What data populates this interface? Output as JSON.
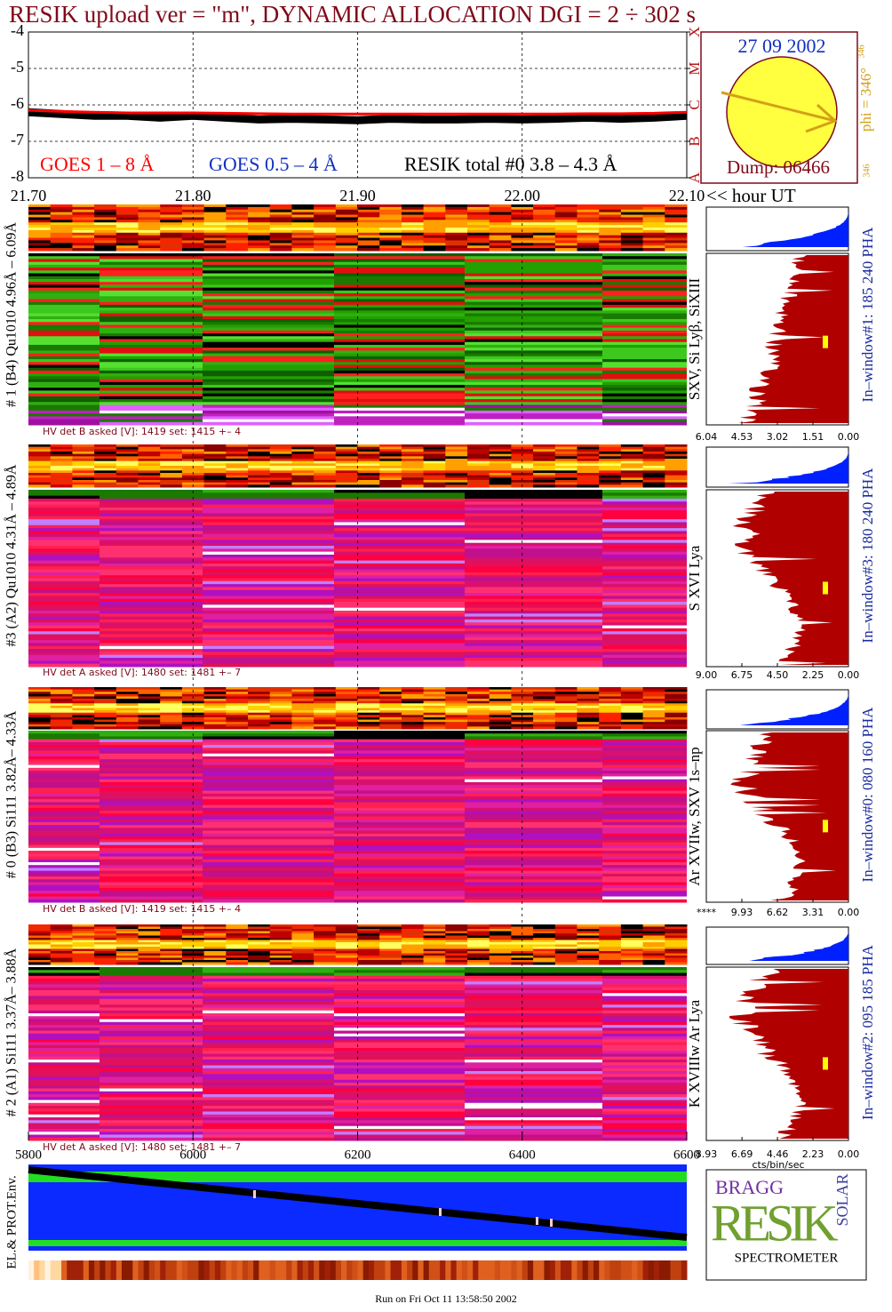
{
  "title": "RESIK upload ver = \"m\", DYNAMIC ALLOCATION  DGI =   2 ÷ 302 s",
  "chart_data": {
    "type": "line",
    "x": [
      21.7,
      21.72,
      21.74,
      21.76,
      21.78,
      21.8,
      21.82,
      21.84,
      21.86,
      21.88,
      21.9,
      21.92,
      21.94,
      21.96,
      21.98,
      22.0,
      22.02,
      22.04,
      22.06,
      22.08,
      22.1
    ],
    "xlim": [
      21.7,
      22.1
    ],
    "xticks": [
      {
        "value": 21.7,
        "label": "21.70"
      },
      {
        "value": 21.8,
        "label": "21.80"
      },
      {
        "value": 21.9,
        "label": "21.90"
      },
      {
        "value": 22,
        "label": "22.00"
      },
      {
        "value": 22.1,
        "label": "22.10"
      }
    ],
    "x_axis_label": "<< hour UT",
    "ylim": [
      -8,
      -4
    ],
    "yticks": [
      -4,
      -5,
      -6,
      -7,
      -8
    ],
    "y2ticks": [
      {
        "value": -4,
        "label": "X"
      },
      {
        "value": -5,
        "label": "M"
      },
      {
        "value": -6,
        "label": "C"
      },
      {
        "value": -7,
        "label": "B"
      },
      {
        "value": -8,
        "label": "A"
      }
    ],
    "grid": true,
    "series": [
      {
        "name": "RESIK total #0  3.8 – 4.3 Å",
        "color": "#000000",
        "values": [
          -6.2,
          -6.25,
          -6.3,
          -6.3,
          -6.35,
          -6.3,
          -6.35,
          -6.4,
          -6.38,
          -6.4,
          -6.42,
          -6.38,
          -6.4,
          -6.4,
          -6.38,
          -6.4,
          -6.38,
          -6.35,
          -6.38,
          -6.35,
          -6.3
        ]
      },
      {
        "name": "GOES 1 – 8 Å",
        "color": "#ff0000",
        "values": [
          -6.15,
          -6.18,
          -6.2,
          -6.22,
          -6.22,
          -6.22,
          -6.23,
          -6.24,
          -6.25,
          -6.25,
          -6.25,
          -6.25,
          -6.25,
          -6.25,
          -6.25,
          -6.25,
          -6.25,
          -6.24,
          -6.24,
          -6.23,
          -6.2
        ]
      }
    ],
    "goes_short_label": "GOES 0.5 – 4 Å"
  },
  "sun": {
    "date": "27 09 2002",
    "phi_label": "phi = 346°",
    "phi_sup": "346",
    "phi_small": "346",
    "dump": "Dump: 06466"
  },
  "panels": [
    {
      "label": "# 1 (B4) Qu1010 4.96Å – 6.09Å",
      "line": "SXV, Si Lyβ, SiXIII",
      "window": "In–window#1:  185 240 PHA",
      "hv": "HV det B asked [V]:  1419 set:  1415 +–    4",
      "hist_xlim": [
        6.04,
        0
      ],
      "hist_ticks": [
        6.04,
        4.53,
        3.02,
        1.51,
        {
          "value": 0,
          "label": "0.00"
        }
      ]
    },
    {
      "label": "#3 (A2) Qu1010  4.31Å – 4.89Å",
      "line": "S XVI Lya",
      "window": "In–window#3:  180 240 PHA",
      "hv": "HV det A asked [V]:  1480 set:  1481 +–    7",
      "hist_xlim": [
        9,
        0
      ],
      "hist_ticks": [
        {
          "value": 9,
          "label": "9.00"
        },
        6.75,
        {
          "value": 4.5,
          "label": "4.50"
        },
        2.25,
        {
          "value": 0,
          "label": "0.00"
        }
      ]
    },
    {
      "label": "# 0 (B3) Si111  3.82Å– 4.33Å",
      "line": "Ar XVIIw, SXV 1s–np",
      "window": "In–window#0:  080 160 PHA",
      "hv": "HV det B asked [V]:  1419 set:  1415 +–    4",
      "hist_xlim": [
        13.24,
        0
      ],
      "hist_ticks": [
        {
          "value": 13.24,
          "label": "****"
        },
        9.93,
        6.62,
        3.31,
        {
          "value": 0,
          "label": "0.00"
        }
      ]
    },
    {
      "label": "# 2 (A1) Si111  3.37Å– 3.88Å",
      "line": "K XVIIIw  Ar Lya",
      "window": "In–window#2:  095 185 PHA",
      "hv": "HV det A asked [V]:  1480 set:  1481 +–    7",
      "hist_xlim": [
        8.93,
        0
      ],
      "hist_ticks": [
        8.93,
        6.69,
        4.46,
        2.23,
        {
          "value": 0,
          "label": "0.00"
        }
      ]
    }
  ],
  "hist_unit": "cts/bin/sec",
  "env": {
    "label": "EL.& PROT.Env.",
    "xlim": [
      5800,
      6600
    ],
    "xticks": [
      5800,
      6000,
      6200,
      6400,
      6600
    ]
  },
  "logo": {
    "top": "BRAGG",
    "main": "RESIK",
    "side": "SOLAR",
    "bottom": "SPECTROMETER"
  },
  "footer": "Run on Fri Oct 11 13:58:50 2002"
}
